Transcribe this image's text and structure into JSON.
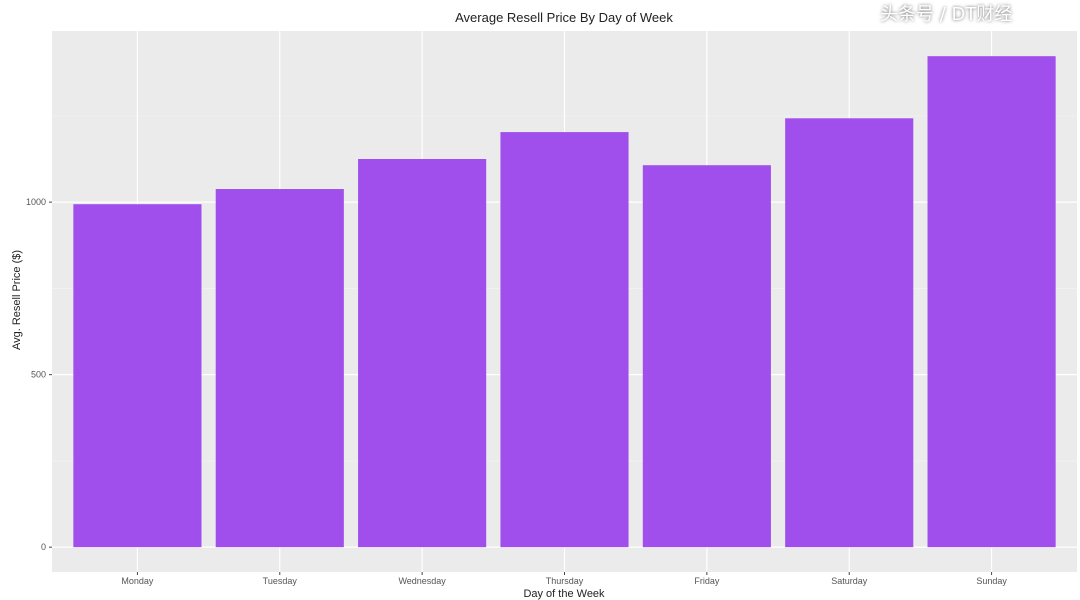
{
  "chart_data": {
    "type": "bar",
    "title": "Average Resell Price By Day of Week",
    "xlabel": "Day of the Week",
    "ylabel": "Avg. Resell Price ($)",
    "categories": [
      "Monday",
      "Tuesday",
      "Wednesday",
      "Thursday",
      "Friday",
      "Saturday",
      "Sunday"
    ],
    "values": [
      994,
      1038,
      1125,
      1203,
      1107,
      1243,
      1423
    ],
    "ylim": [
      -72,
      1496
    ],
    "yticks": [
      0,
      500,
      1000
    ],
    "grid": true,
    "bar_color": "#a04fec",
    "panel_color": "#ebebeb"
  },
  "watermark": "头条号 / DT财经"
}
